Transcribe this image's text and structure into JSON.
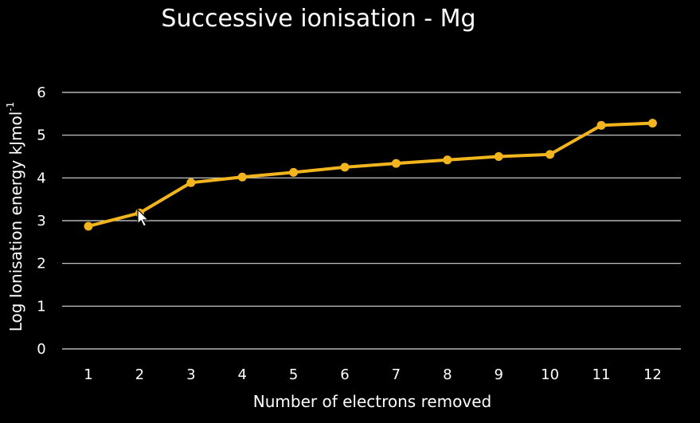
{
  "chart_data": {
    "type": "line",
    "title": "Successive ionisation - Mg",
    "xlabel": "Number of electrons removed",
    "ylabel": "Log Ionisation energy kJmol",
    "ylabel_superscript": "-1",
    "categories": [
      "1",
      "2",
      "3",
      "4",
      "5",
      "6",
      "7",
      "8",
      "9",
      "10",
      "11",
      "12"
    ],
    "series": [
      {
        "values": [
          2.87,
          3.18,
          3.89,
          4.02,
          4.13,
          4.25,
          4.34,
          4.42,
          4.5,
          4.55,
          5.23,
          5.28
        ],
        "color": "#f2b51e"
      }
    ],
    "y_ticks": [
      "0",
      "1",
      "2",
      "3",
      "4",
      "5",
      "6"
    ],
    "ylim": [
      0,
      6
    ],
    "grid": true,
    "gridline_color": "#d9d9d9",
    "background": "#000000",
    "text_color": "#ffffff"
  }
}
